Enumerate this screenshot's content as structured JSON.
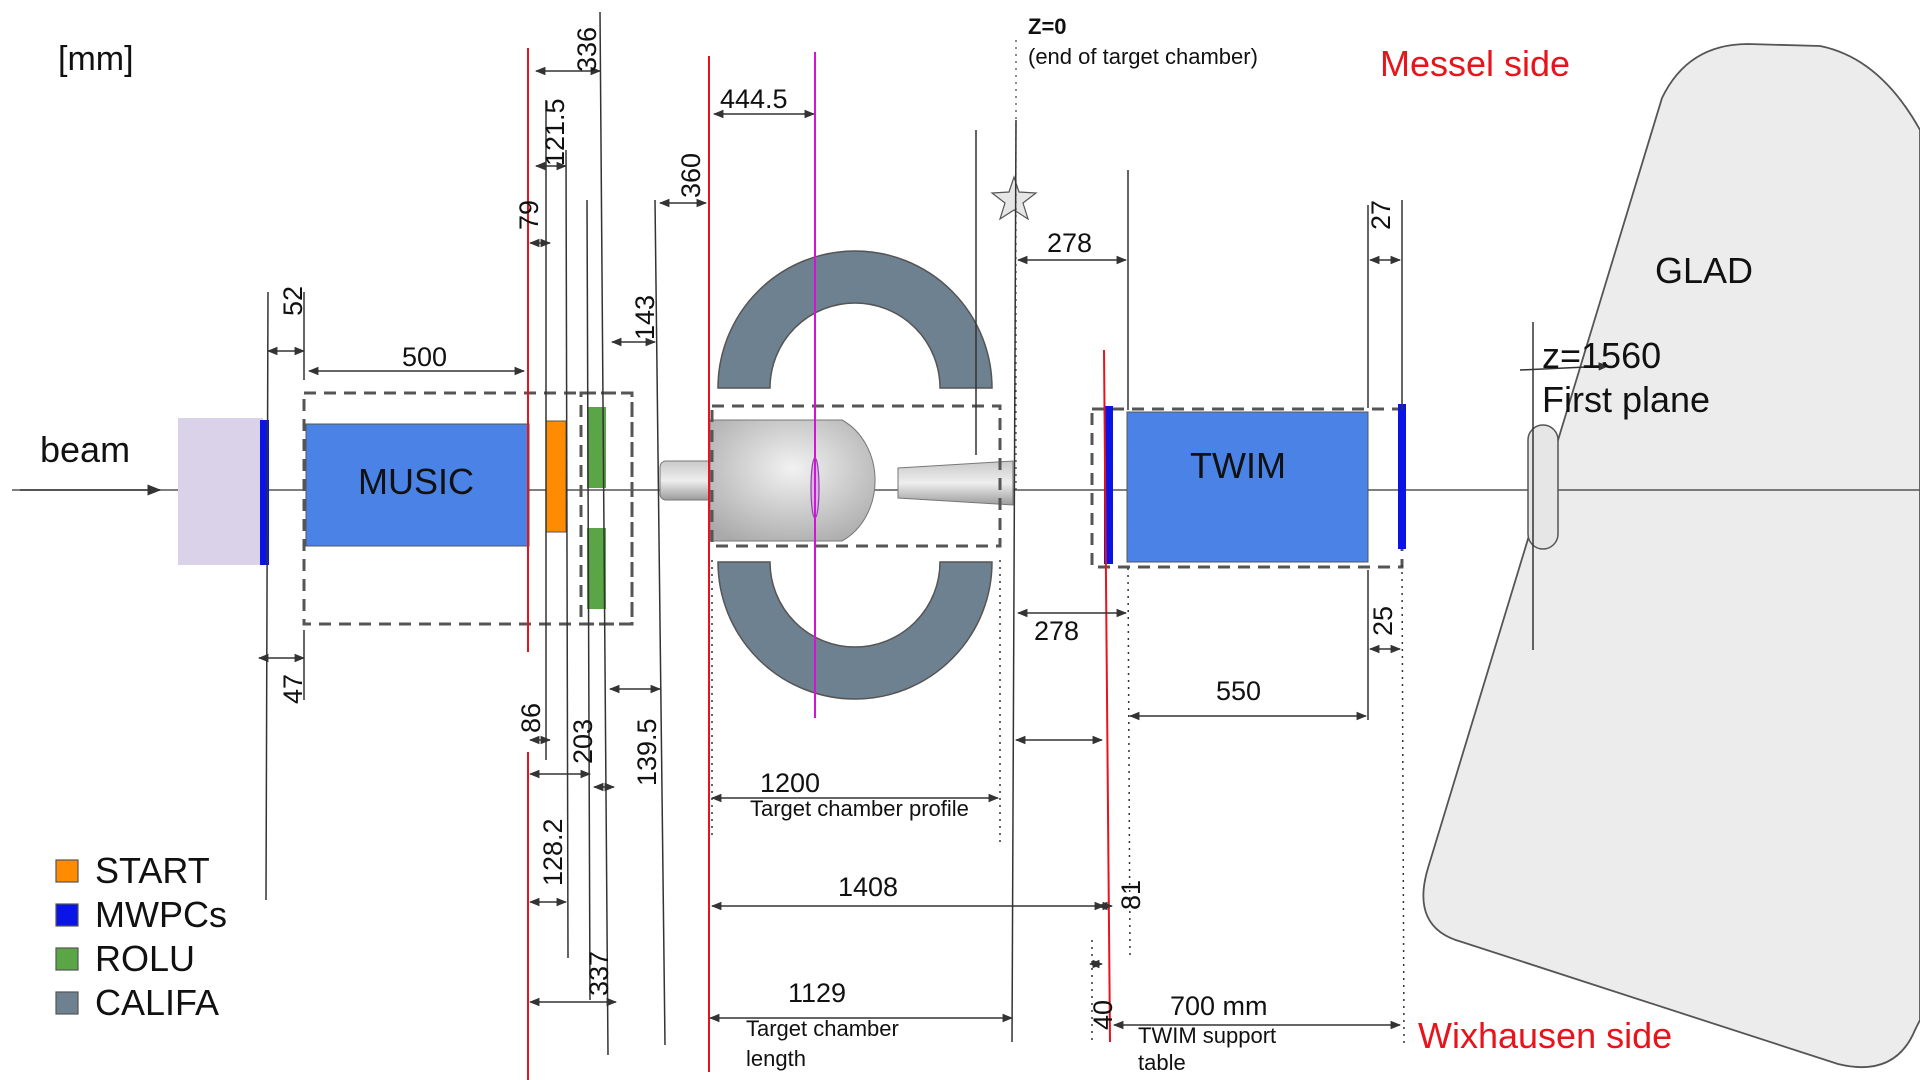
{
  "unit_label": "[mm]",
  "z0": {
    "title": "Z=0",
    "subtitle": "(end of target chamber)"
  },
  "sides": {
    "messel": "Messel side",
    "wixhausen": "Wixhausen side"
  },
  "beam": "beam",
  "detectors": {
    "music": "MUSIC",
    "twim": "TWIM",
    "glad": "GLAD"
  },
  "first_plane": {
    "z": "z=1560",
    "label": "First plane"
  },
  "dims": {
    "d336": "336",
    "d121": "121.5",
    "d79": "79",
    "d4445": "444.5",
    "d360": "360",
    "d278_top": "278",
    "d27": "27",
    "d52": "52",
    "d500": "500",
    "d143": "143",
    "d278_bot": "278",
    "d25": "25",
    "d47": "47",
    "d86": "86",
    "d203": "203",
    "d1395": "139.5",
    "d550": "550",
    "d1200": "1200",
    "d1282": "128.2",
    "d1408": "1408",
    "d81": "81",
    "d337": "337",
    "d1129": "1129",
    "d40": "40",
    "d700": "700 mm"
  },
  "captions": {
    "tc_profile": "Target chamber profile",
    "tc_length_1": "Target chamber",
    "tc_length_2": "length",
    "twim_table_1": "TWIM support",
    "twim_table_2": "table"
  },
  "legend": [
    {
      "label": "START",
      "color": "#ff8c00"
    },
    {
      "label": "MWPCs",
      "color": "#0a14e6"
    },
    {
      "label": "ROLU",
      "color": "#5aa646"
    },
    {
      "label": "CALIFA",
      "color": "#6e8190"
    }
  ],
  "colors": {
    "music_fill": "#4a82e6",
    "twim_fill": "#4a82e6",
    "mwpc": "#0a14e6",
    "start": "#ff8c00",
    "rolu": "#5aa646",
    "califa": "#6e8190",
    "target_line": "#d414d4",
    "red_lines": "#e8141b"
  }
}
